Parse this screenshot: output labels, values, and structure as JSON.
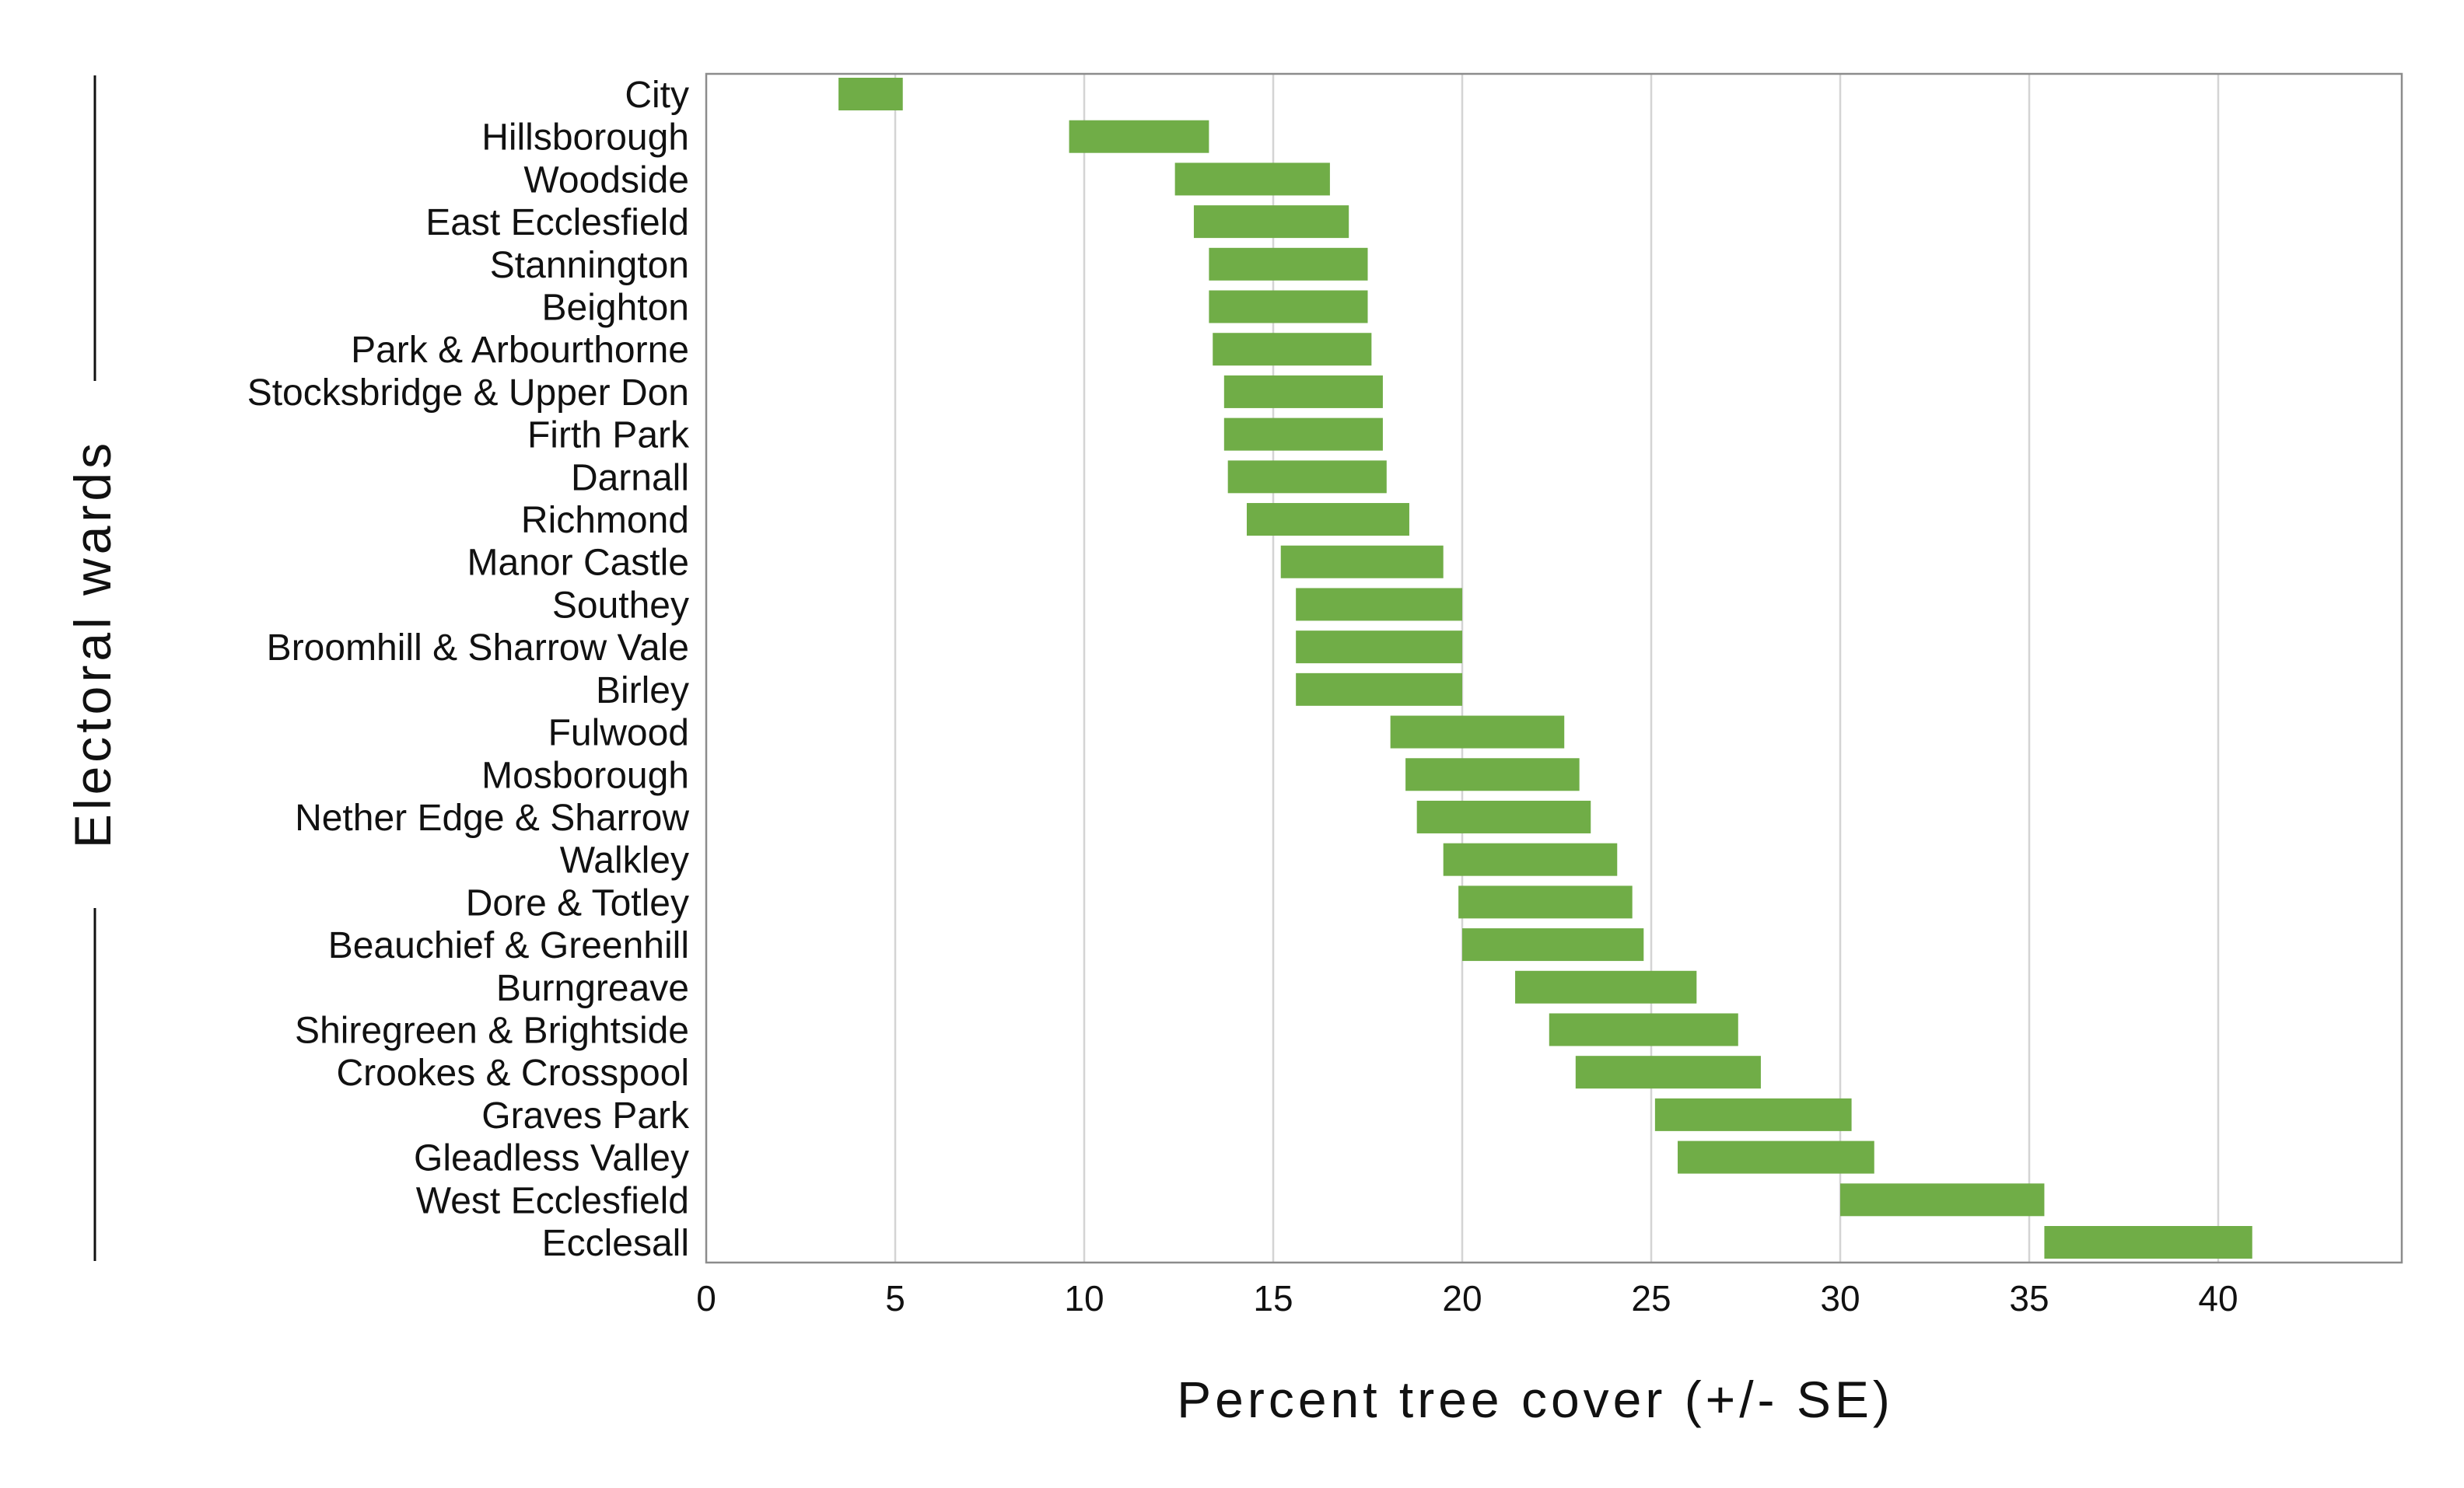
{
  "chart_data": {
    "type": "bar",
    "orientation": "horizontal",
    "style": "range",
    "xlabel": "Percent tree cover (+/- SE)",
    "ylabel": "Electoral wards",
    "xlim": [
      0,
      45
    ],
    "xticks": [
      0,
      5,
      10,
      15,
      20,
      25,
      30,
      35,
      40
    ],
    "grid": "vertical",
    "bar_color": "#70ad47",
    "categories": [
      "City",
      "Hillsborough",
      "Woodside",
      "East Ecclesfield",
      "Stannington",
      "Beighton",
      "Park & Arbourthorne",
      "Stocksbridge & Upper Don",
      "Firth Park",
      "Darnall",
      "Richmond",
      "Manor Castle",
      "Southey",
      "Broomhill & Sharrow Vale",
      "Birley",
      "Fulwood",
      "Mosborough",
      "Nether Edge & Sharrow",
      "Walkley",
      "Dore & Totley",
      "Beauchief & Greenhill",
      "Burngreave",
      "Shiregreen & Brightside",
      "Crookes & Crosspool",
      "Graves Park",
      "Gleadless Valley",
      "West Ecclesfield",
      "Ecclesall"
    ],
    "ranges": [
      [
        3.5,
        5.2
      ],
      [
        9.6,
        13.3
      ],
      [
        12.4,
        16.5
      ],
      [
        12.9,
        17.0
      ],
      [
        13.3,
        17.5
      ],
      [
        13.3,
        17.5
      ],
      [
        13.4,
        17.6
      ],
      [
        13.7,
        17.9
      ],
      [
        13.7,
        17.9
      ],
      [
        13.8,
        18.0
      ],
      [
        14.3,
        18.6
      ],
      [
        15.2,
        19.5
      ],
      [
        15.6,
        20.0
      ],
      [
        15.6,
        20.0
      ],
      [
        15.6,
        20.0
      ],
      [
        18.1,
        22.7
      ],
      [
        18.5,
        23.1
      ],
      [
        18.8,
        23.4
      ],
      [
        19.5,
        24.1
      ],
      [
        19.9,
        24.5
      ],
      [
        20.0,
        24.8
      ],
      [
        21.4,
        26.2
      ],
      [
        22.3,
        27.3
      ],
      [
        23.0,
        27.9
      ],
      [
        25.1,
        30.3
      ],
      [
        25.7,
        30.9
      ],
      [
        30.0,
        35.4
      ],
      [
        35.4,
        40.9
      ]
    ]
  }
}
